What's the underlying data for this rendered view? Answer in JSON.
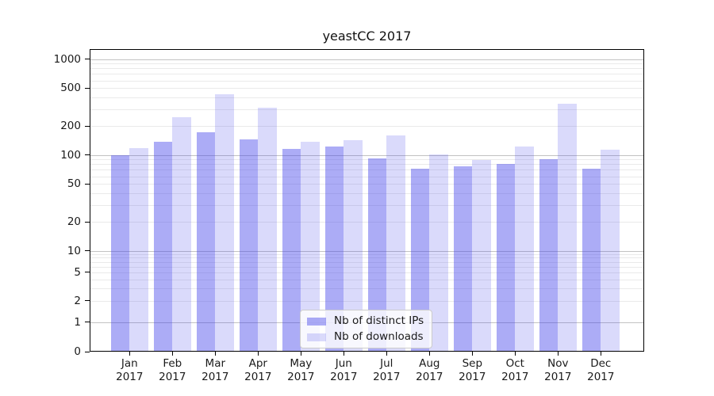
{
  "chart_data": {
    "type": "bar",
    "title": "yeastCC 2017",
    "categories": [
      "Jan",
      "Feb",
      "Mar",
      "Apr",
      "May",
      "Jun",
      "Jul",
      "Aug",
      "Sep",
      "Oct",
      "Nov",
      "Dec"
    ],
    "category_year": "2017",
    "series": [
      {
        "name": "Nb of distinct IPs",
        "color": "rgba(70,70,235,0.45)",
        "values": [
          100,
          138,
          174,
          146,
          116,
          123,
          93,
          72,
          76,
          81,
          90,
          72
        ]
      },
      {
        "name": "Nb of downloads",
        "color": "rgba(70,70,235,0.20)",
        "values": [
          118,
          246,
          428,
          310,
          138,
          143,
          159,
          101,
          88,
          123,
          343,
          113
        ]
      }
    ],
    "xlabel": "",
    "ylabel": "",
    "yscale": "symlog",
    "yticks": [
      0,
      1,
      2,
      5,
      10,
      20,
      50,
      100,
      200,
      500,
      1000
    ],
    "ylim": [
      0,
      1250
    ],
    "grid": "both",
    "legend_position": "lower center",
    "colors": {
      "major_grid": "#c2c2c2",
      "minor_grid": "#eaeaea",
      "spine": "#000000",
      "text": "#1a1a1a"
    }
  }
}
